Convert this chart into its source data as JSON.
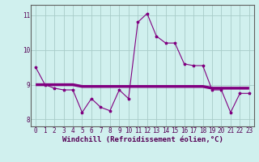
{
  "xlabel": "Windchill (Refroidissement éolien,°C)",
  "background_color": "#d0f0ee",
  "grid_color": "#a8ccc8",
  "line_color": "#800080",
  "xlim": [
    -0.5,
    23.5
  ],
  "ylim": [
    7.8,
    11.3
  ],
  "yticks": [
    8,
    9,
    10,
    11
  ],
  "xticks": [
    0,
    1,
    2,
    3,
    4,
    5,
    6,
    7,
    8,
    9,
    10,
    11,
    12,
    13,
    14,
    15,
    16,
    17,
    18,
    19,
    20,
    21,
    22,
    23
  ],
  "series1_x": [
    0,
    1,
    2,
    3,
    4,
    5,
    6,
    7,
    8,
    9,
    10,
    11,
    12,
    13,
    14,
    15,
    16,
    17,
    18,
    19,
    20,
    21,
    22,
    23
  ],
  "series1_y": [
    9.5,
    9.0,
    8.9,
    8.85,
    8.85,
    8.2,
    8.6,
    8.35,
    8.25,
    8.85,
    8.6,
    10.8,
    11.05,
    10.4,
    10.2,
    10.2,
    9.6,
    9.55,
    9.55,
    8.85,
    8.85,
    8.2,
    8.75,
    8.75
  ],
  "series2_x": [
    0,
    1,
    2,
    3,
    4,
    5,
    6,
    7,
    8,
    9,
    10,
    11,
    12,
    13,
    14,
    15,
    16,
    17,
    18,
    19,
    20,
    21,
    22,
    23
  ],
  "series2_y": [
    9.0,
    9.0,
    9.0,
    9.0,
    9.0,
    8.95,
    8.95,
    8.95,
    8.95,
    8.95,
    8.95,
    8.95,
    8.95,
    8.95,
    8.95,
    8.95,
    8.95,
    8.95,
    8.95,
    8.9,
    8.9,
    8.9,
    8.9,
    8.9
  ],
  "tick_fontsize": 5.5,
  "xlabel_fontsize": 6.5
}
